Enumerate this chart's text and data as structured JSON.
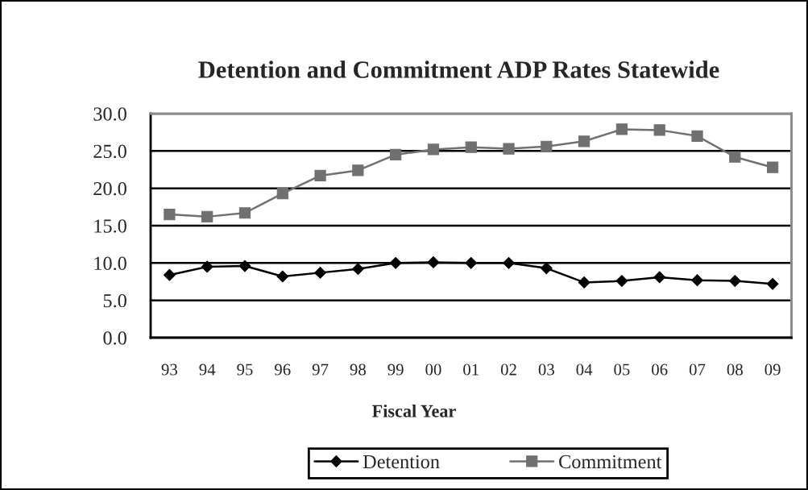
{
  "chart_data": {
    "type": "line",
    "title": "Detention and Commitment ADP Rates Statewide",
    "xlabel": "Fiscal Year",
    "categories": [
      "93",
      "94",
      "95",
      "96",
      "97",
      "98",
      "99",
      "00",
      "01",
      "02",
      "03",
      "04",
      "05",
      "06",
      "07",
      "08",
      "09"
    ],
    "series": [
      {
        "name": "Detention",
        "color": "#000000",
        "marker": "diamond",
        "values": [
          8.4,
          9.5,
          9.6,
          8.2,
          8.7,
          9.2,
          10.0,
          10.1,
          10.0,
          10.0,
          9.3,
          7.4,
          7.6,
          8.1,
          7.7,
          7.6,
          7.2
        ]
      },
      {
        "name": "Commitment",
        "color": "#707070",
        "marker": "square",
        "values": [
          16.5,
          16.2,
          16.7,
          19.3,
          21.7,
          22.4,
          24.5,
          25.2,
          25.5,
          25.3,
          25.6,
          26.3,
          27.9,
          27.8,
          27.0,
          24.2,
          22.8
        ]
      }
    ],
    "ylim": [
      0,
      30
    ],
    "yticks": [
      {
        "value": 0,
        "label": "0.0"
      },
      {
        "value": 5,
        "label": "5.0"
      },
      {
        "value": 10,
        "label": "10.0"
      },
      {
        "value": 15,
        "label": "15.0"
      },
      {
        "value": 20,
        "label": "20.0"
      },
      {
        "value": 25,
        "label": "25.0"
      },
      {
        "value": 30,
        "label": "30.0"
      }
    ],
    "grid": "y",
    "legend": "bottom",
    "line_style": "solid"
  }
}
